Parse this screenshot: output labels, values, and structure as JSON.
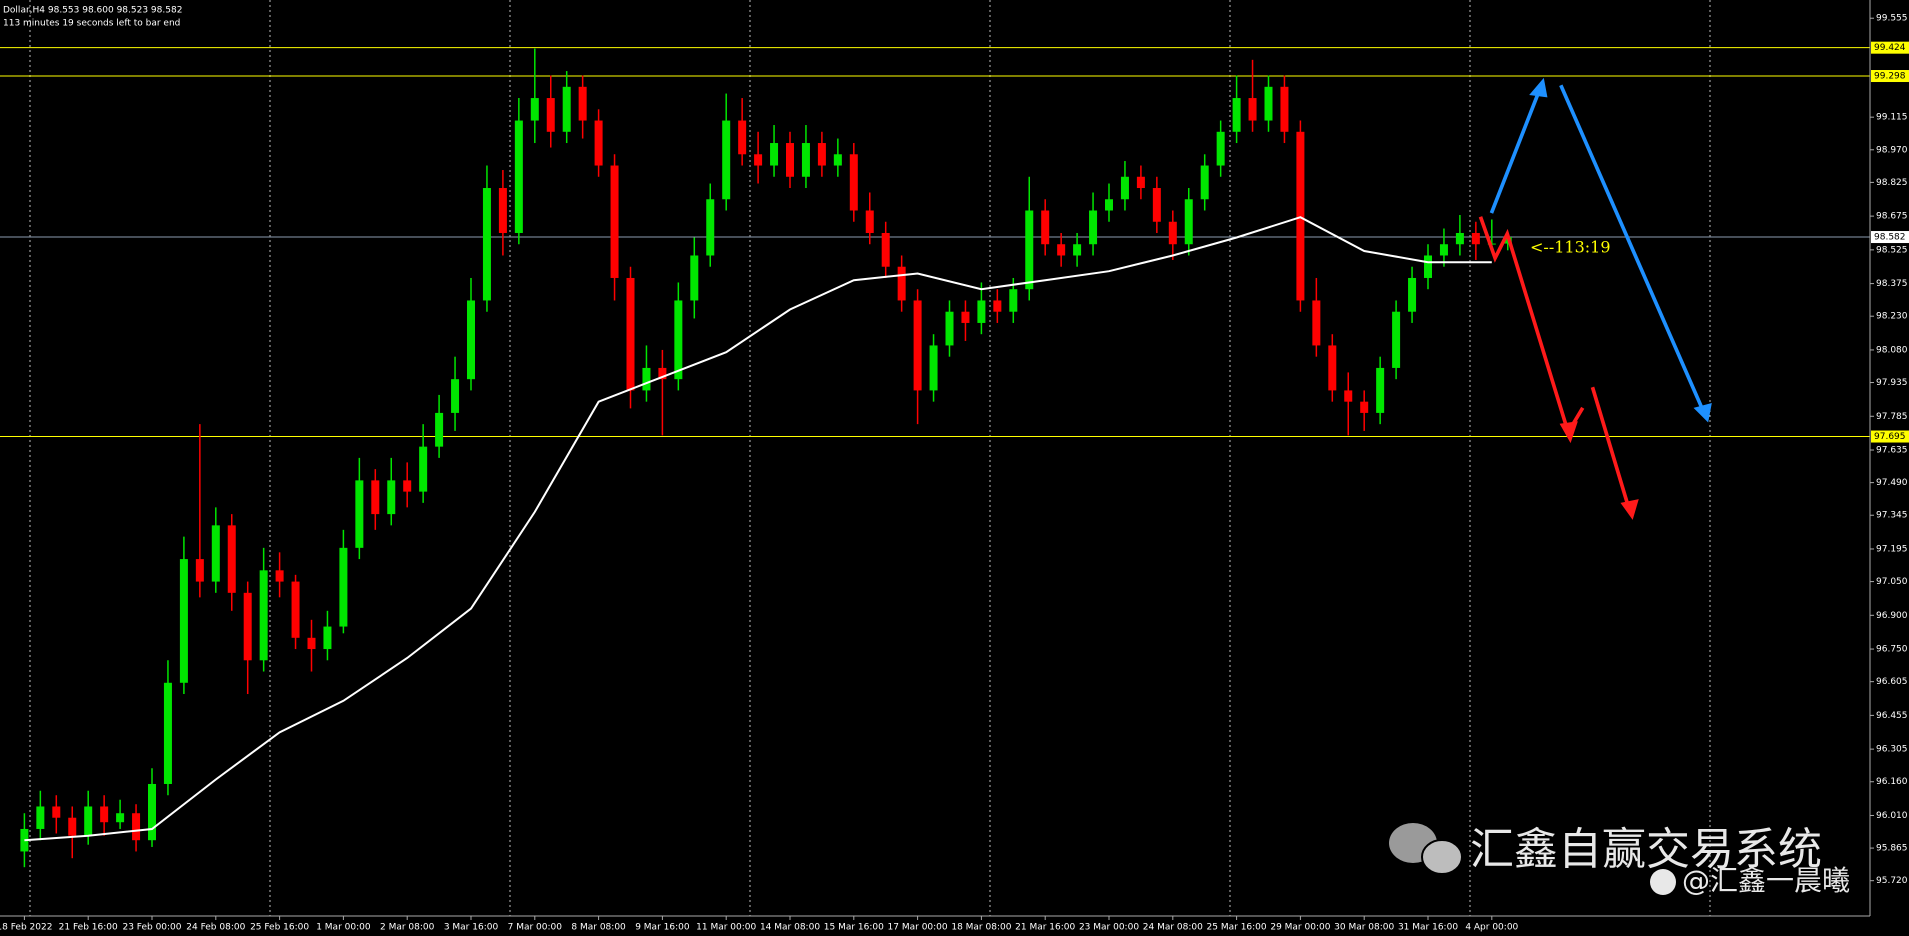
{
  "chart_data": {
    "type": "candlestick",
    "header": "Dollar,H4  98.553 98.600 98.523 98.582",
    "subheader": "113 minutes 19 seconds left to bar end",
    "countdown": "<--113:19",
    "watermark": "汇鑫自赢交易系统",
    "watermark_sub": "@汇鑫一晨曦",
    "categories": [
      "18 Feb 2022",
      null,
      null,
      null,
      "21 Feb 16:00",
      null,
      null,
      null,
      "23 Feb 00:00",
      null,
      null,
      null,
      "24 Feb 08:00",
      null,
      null,
      null,
      "25 Feb 16:00",
      null,
      null,
      null,
      "1 Mar 00:00",
      null,
      null,
      null,
      "2 Mar 08:00",
      null,
      null,
      null,
      "3 Mar 16:00",
      null,
      null,
      null,
      "7 Mar 00:00",
      null,
      null,
      null,
      "8 Mar 08:00",
      null,
      null,
      null,
      "9 Mar 16:00",
      null,
      null,
      null,
      "11 Mar 00:00",
      null,
      null,
      null,
      "14 Mar 08:00",
      null,
      null,
      null,
      "15 Mar 16:00",
      null,
      null,
      null,
      "17 Mar 00:00",
      null,
      null,
      null,
      "18 Mar 08:00",
      null,
      null,
      null,
      "21 Mar 16:00",
      null,
      null,
      null,
      "23 Mar 00:00",
      null,
      null,
      null,
      "24 Mar 08:00",
      null,
      null,
      null,
      "25 Mar 16:00",
      null,
      null,
      null,
      "29 Mar 00:00",
      null,
      null,
      null,
      "30 Mar 08:00",
      null,
      null,
      null,
      "31 Mar 16:00",
      null,
      null,
      null,
      "4 Apr 00:00",
      null
    ],
    "candles": [
      [
        95.85,
        96.02,
        95.78,
        95.95
      ],
      [
        95.95,
        96.12,
        95.9,
        96.05
      ],
      [
        96.05,
        96.1,
        95.93,
        96.0
      ],
      [
        96.0,
        96.05,
        95.82,
        95.92
      ],
      [
        95.92,
        96.12,
        95.88,
        96.05
      ],
      [
        96.05,
        96.1,
        95.92,
        95.98
      ],
      [
        95.98,
        96.08,
        95.95,
        96.02
      ],
      [
        96.02,
        96.06,
        95.85,
        95.9
      ],
      [
        95.9,
        96.22,
        95.87,
        96.15
      ],
      [
        96.15,
        96.7,
        96.1,
        96.6
      ],
      [
        96.6,
        97.25,
        96.55,
        97.15
      ],
      [
        97.15,
        97.75,
        96.98,
        97.05
      ],
      [
        97.05,
        97.38,
        97.0,
        97.3
      ],
      [
        97.3,
        97.35,
        96.92,
        97.0
      ],
      [
        97.0,
        97.05,
        96.55,
        96.7
      ],
      [
        96.7,
        97.2,
        96.65,
        97.1
      ],
      [
        97.1,
        97.18,
        96.98,
        97.05
      ],
      [
        97.05,
        97.08,
        96.75,
        96.8
      ],
      [
        96.8,
        96.88,
        96.65,
        96.75
      ],
      [
        96.75,
        96.92,
        96.7,
        96.85
      ],
      [
        96.85,
        97.28,
        96.82,
        97.2
      ],
      [
        97.2,
        97.6,
        97.15,
        97.5
      ],
      [
        97.5,
        97.55,
        97.28,
        97.35
      ],
      [
        97.35,
        97.6,
        97.3,
        97.5
      ],
      [
        97.5,
        97.58,
        97.38,
        97.45
      ],
      [
        97.45,
        97.75,
        97.4,
        97.65
      ],
      [
        97.65,
        97.88,
        97.6,
        97.8
      ],
      [
        97.8,
        98.05,
        97.72,
        97.95
      ],
      [
        97.95,
        98.4,
        97.9,
        98.3
      ],
      [
        98.3,
        98.9,
        98.25,
        98.8
      ],
      [
        98.8,
        98.88,
        98.5,
        98.6
      ],
      [
        98.6,
        99.2,
        98.55,
        99.1
      ],
      [
        99.1,
        99.42,
        99.0,
        99.2
      ],
      [
        99.2,
        99.3,
        98.98,
        99.05
      ],
      [
        99.05,
        99.32,
        99.0,
        99.25
      ],
      [
        99.25,
        99.3,
        99.02,
        99.1
      ],
      [
        99.1,
        99.15,
        98.85,
        98.9
      ],
      [
        98.9,
        98.95,
        98.3,
        98.4
      ],
      [
        98.4,
        98.45,
        97.82,
        97.9
      ],
      [
        97.9,
        98.1,
        97.85,
        98.0
      ],
      [
        98.0,
        98.08,
        97.7,
        97.95
      ],
      [
        97.95,
        98.38,
        97.9,
        98.3
      ],
      [
        98.3,
        98.58,
        98.22,
        98.5
      ],
      [
        98.5,
        98.82,
        98.45,
        98.75
      ],
      [
        98.75,
        99.22,
        98.7,
        99.1
      ],
      [
        99.1,
        99.2,
        98.9,
        98.95
      ],
      [
        98.95,
        99.05,
        98.82,
        98.9
      ],
      [
        98.9,
        99.08,
        98.85,
        99.0
      ],
      [
        99.0,
        99.05,
        98.8,
        98.85
      ],
      [
        98.85,
        99.08,
        98.8,
        99.0
      ],
      [
        99.0,
        99.05,
        98.85,
        98.9
      ],
      [
        98.9,
        99.02,
        98.85,
        98.95
      ],
      [
        98.95,
        99.0,
        98.65,
        98.7
      ],
      [
        98.7,
        98.78,
        98.55,
        98.6
      ],
      [
        98.6,
        98.65,
        98.4,
        98.45
      ],
      [
        98.45,
        98.5,
        98.25,
        98.3
      ],
      [
        98.3,
        98.35,
        97.75,
        97.9
      ],
      [
        97.9,
        98.15,
        97.85,
        98.1
      ],
      [
        98.1,
        98.3,
        98.05,
        98.25
      ],
      [
        98.25,
        98.3,
        98.12,
        98.2
      ],
      [
        98.2,
        98.38,
        98.15,
        98.3
      ],
      [
        98.3,
        98.35,
        98.2,
        98.25
      ],
      [
        98.25,
        98.4,
        98.2,
        98.35
      ],
      [
        98.35,
        98.85,
        98.3,
        98.7
      ],
      [
        98.7,
        98.75,
        98.5,
        98.55
      ],
      [
        98.55,
        98.6,
        98.45,
        98.5
      ],
      [
        98.5,
        98.6,
        98.45,
        98.55
      ],
      [
        98.55,
        98.78,
        98.5,
        98.7
      ],
      [
        98.7,
        98.82,
        98.65,
        98.75
      ],
      [
        98.75,
        98.92,
        98.7,
        98.85
      ],
      [
        98.85,
        98.9,
        98.75,
        98.8
      ],
      [
        98.8,
        98.85,
        98.6,
        98.65
      ],
      [
        98.65,
        98.7,
        98.48,
        98.55
      ],
      [
        98.55,
        98.8,
        98.5,
        98.75
      ],
      [
        98.75,
        98.95,
        98.7,
        98.9
      ],
      [
        98.9,
        99.1,
        98.85,
        99.05
      ],
      [
        99.05,
        99.3,
        99.0,
        99.2
      ],
      [
        99.2,
        99.37,
        99.05,
        99.1
      ],
      [
        99.1,
        99.3,
        99.05,
        99.25
      ],
      [
        99.25,
        99.3,
        99.0,
        99.05
      ],
      [
        99.05,
        99.1,
        98.25,
        98.3
      ],
      [
        98.3,
        98.4,
        98.05,
        98.1
      ],
      [
        98.1,
        98.15,
        97.85,
        97.9
      ],
      [
        97.9,
        97.98,
        97.7,
        97.85
      ],
      [
        97.85,
        97.9,
        97.72,
        97.8
      ],
      [
        97.8,
        98.05,
        97.75,
        98.0
      ],
      [
        98.0,
        98.3,
        97.95,
        98.25
      ],
      [
        98.25,
        98.45,
        98.2,
        98.4
      ],
      [
        98.4,
        98.55,
        98.35,
        98.5
      ],
      [
        98.5,
        98.62,
        98.45,
        98.55
      ],
      [
        98.55,
        98.68,
        98.5,
        98.6
      ],
      [
        98.6,
        98.65,
        98.48,
        98.55
      ],
      [
        98.55,
        98.66,
        98.52,
        98.553
      ],
      [
        98.553,
        98.6,
        98.523,
        98.582
      ]
    ],
    "up_color": "#00e600",
    "down_color": "#ff0000",
    "overlay": {
      "color": "#ffffff",
      "x": [
        0,
        4,
        8,
        12,
        16,
        20,
        24,
        28,
        32,
        36,
        40,
        44,
        48,
        52,
        56,
        60,
        64,
        68,
        72,
        76,
        80,
        84,
        88,
        92
      ],
      "values": [
        95.9,
        95.92,
        95.95,
        96.17,
        96.38,
        96.52,
        96.71,
        96.93,
        97.36,
        97.85,
        97.96,
        98.07,
        98.26,
        98.39,
        98.42,
        98.35,
        98.39,
        98.43,
        98.5,
        98.58,
        98.67,
        98.52,
        98.47,
        98.47
      ]
    },
    "hlines": [
      99.424,
      99.298,
      97.695
    ],
    "hline_color": "#ffff00",
    "price_line": 98.582,
    "price_line_color": "#8c9bb0",
    "ylim": [
      95.563,
      99.636
    ],
    "yticks": [
      99.555,
      99.115,
      {
        "value": 98.97,
        "label": "98.970"
      },
      98.825,
      98.675,
      98.525,
      98.375,
      {
        "value": 98.23,
        "label": "98.230"
      },
      {
        "value": 98.08,
        "label": "98.080"
      },
      97.935,
      97.785,
      97.635,
      {
        "value": 97.49,
        "label": "97.490"
      },
      97.345,
      97.195,
      {
        "value": 97.05,
        "label": "97.050"
      },
      {
        "value": 96.9,
        "label": "96.900"
      },
      {
        "value": 96.75,
        "label": "96.750"
      },
      96.605,
      96.455,
      96.305,
      {
        "value": 96.16,
        "label": "96.160"
      },
      {
        "value": 96.01,
        "label": "96.010"
      },
      95.865,
      {
        "value": 95.72,
        "label": "95.720"
      }
    ]
  }
}
